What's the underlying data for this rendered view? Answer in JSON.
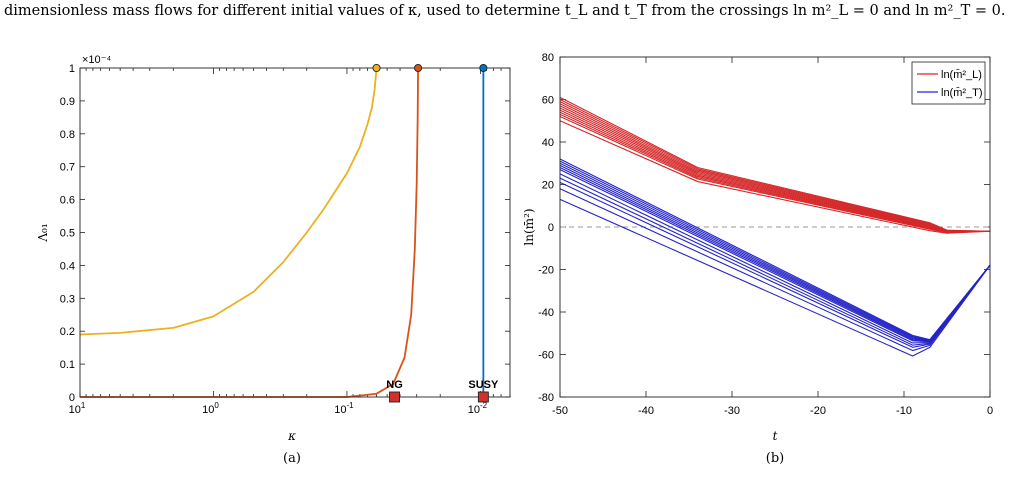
{
  "caption": "dimensionless mass flows for different initial values of κ, used to determine t_L and t_T from the crossings ln m²_L = 0 and ln m²_T = 0.",
  "chart_data": [
    {
      "type": "line",
      "panel_label": "(a)",
      "xlabel": "κ",
      "ylabel": "Λ₀₁",
      "x_scale": "log",
      "x_reversed": true,
      "xlim": [
        10,
        0.006
      ],
      "ylim": [
        0,
        0.0001
      ],
      "y_exponent": "×10⁻⁴",
      "xticks": [
        {
          "v": 10,
          "base": "10",
          "exp": "1"
        },
        {
          "v": 1,
          "base": "10",
          "exp": "0"
        },
        {
          "v": 0.1,
          "base": "10",
          "exp": "-1"
        },
        {
          "v": 0.01,
          "base": "10",
          "exp": "-2"
        }
      ],
      "yticks": [
        {
          "v": 0,
          "label": "0"
        },
        {
          "v": 1e-05,
          "label": "0.1"
        },
        {
          "v": 2e-05,
          "label": "0.2"
        },
        {
          "v": 3e-05,
          "label": "0.3"
        },
        {
          "v": 4e-05,
          "label": "0.4"
        },
        {
          "v": 5e-05,
          "label": "0.5"
        },
        {
          "v": 6e-05,
          "label": "0.6"
        },
        {
          "v": 7e-05,
          "label": "0.7"
        },
        {
          "v": 8e-05,
          "label": "0.8"
        },
        {
          "v": 9e-05,
          "label": "0.9"
        },
        {
          "v": 0.0001,
          "label": "1"
        }
      ],
      "series": [
        {
          "color": "#EDB120",
          "kappa": [
            10,
            5,
            2,
            1,
            0.5,
            0.3,
            0.2,
            0.15,
            0.1,
            0.08,
            0.07,
            0.065,
            0.062,
            0.06
          ],
          "lambda": [
            1.9e-05,
            1.95e-05,
            2.1e-05,
            2.45e-05,
            3.2e-05,
            4.1e-05,
            5e-05,
            5.7e-05,
            6.8e-05,
            7.6e-05,
            8.3e-05,
            8.8e-05,
            9.35e-05,
            0.0001
          ]
        },
        {
          "color": "#D95319",
          "kappa": [
            10,
            1,
            0.1,
            0.06,
            0.045,
            0.037,
            0.033,
            0.031,
            0.03,
            0.0295,
            0.0293
          ],
          "lambda": [
            0,
            0,
            0,
            1e-06,
            4e-06,
            1.2e-05,
            2.5e-05,
            4.5e-05,
            6.5e-05,
            8.5e-05,
            0.0001
          ]
        },
        {
          "color": "#0072BD",
          "kappa": [
            0.0095,
            0.0095
          ],
          "lambda": [
            0,
            0.0001
          ]
        }
      ],
      "endpoints": [
        {
          "kappa": 0.06,
          "lambda": 0.0001,
          "color": "#EDB120"
        },
        {
          "kappa": 0.0293,
          "lambda": 0.0001,
          "color": "#D95319"
        },
        {
          "kappa": 0.0095,
          "lambda": 0.0001,
          "color": "#0072BD"
        }
      ],
      "markers": [
        {
          "label": "NG",
          "kappa": 0.044,
          "lambda": 0
        },
        {
          "label": "SUSY",
          "kappa": 0.0095,
          "lambda": 0
        }
      ]
    },
    {
      "type": "line",
      "panel_label": "(b)",
      "xlabel": "t",
      "ylabel": "ln(m̄²)",
      "xlim": [
        -50,
        0
      ],
      "ylim": [
        -80,
        80
      ],
      "xticks": [
        -50,
        -40,
        -30,
        -20,
        -10,
        0
      ],
      "yticks": [
        -80,
        -60,
        -40,
        -20,
        0,
        20,
        40,
        60,
        80
      ],
      "reference_line": 0,
      "legend_position": "top-right",
      "legend": [
        {
          "label": "ln(m̄²_L)",
          "color": "#D62728"
        },
        {
          "label": "ln(m̄²_T)",
          "color": "#2424C8"
        }
      ],
      "red_family": {
        "color": "#D62728",
        "x": [
          -50,
          -34,
          -7,
          -5,
          0
        ],
        "y": [
          61,
          28,
          2,
          -1.5,
          -2
        ],
        "start_values": [
          61,
          60,
          59,
          58,
          57,
          56,
          55,
          54,
          53,
          52,
          50
        ]
      },
      "blue_family": {
        "color": "#2424C8",
        "x": [
          -50,
          -9,
          -7,
          0
        ],
        "y": [
          32,
          -51,
          -53,
          -18
        ],
        "start_values": [
          32,
          31,
          30,
          29,
          28,
          27,
          25,
          23,
          21,
          18,
          13
        ]
      }
    }
  ]
}
